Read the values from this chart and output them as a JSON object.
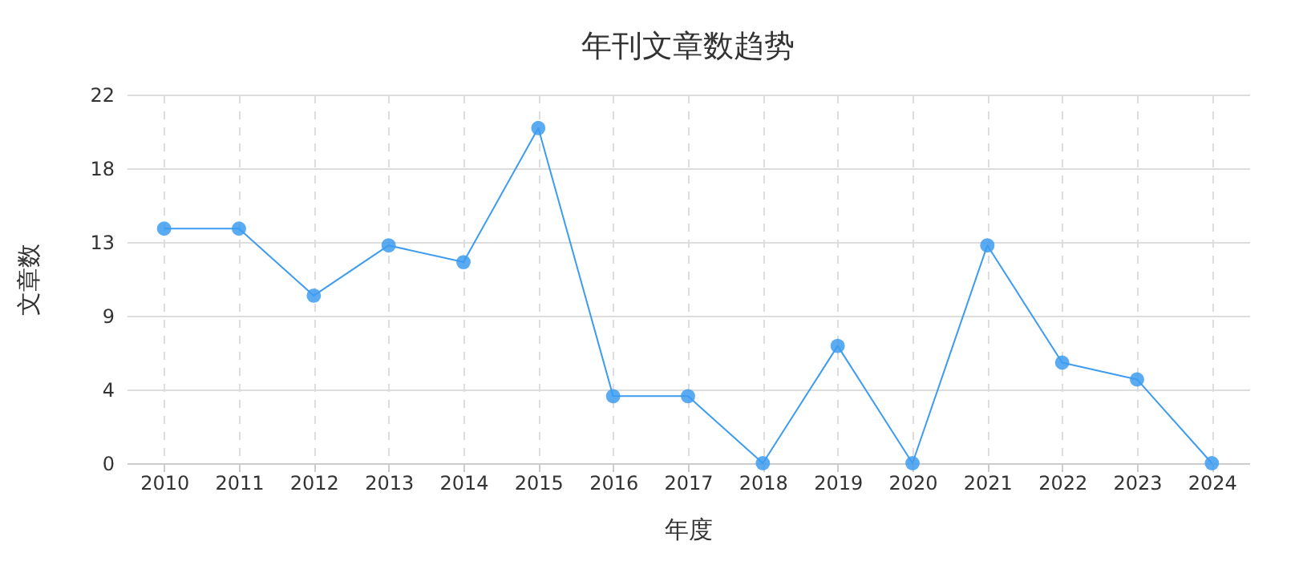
{
  "chart_data": {
    "type": "line",
    "title": "年刊文章数趋势",
    "xlabel": "年度",
    "ylabel": "文章数",
    "categories": [
      "2010",
      "2011",
      "2012",
      "2013",
      "2014",
      "2015",
      "2016",
      "2017",
      "2018",
      "2019",
      "2020",
      "2021",
      "2022",
      "2023",
      "2024"
    ],
    "series": [
      {
        "color": "#3d9cf0",
        "values": [
          14,
          14,
          10,
          13,
          12,
          20,
          4,
          4,
          0,
          7,
          0,
          13,
          6,
          5,
          0
        ]
      }
    ],
    "ylim": [
      0,
      22
    ],
    "yticks": [
      0,
      {
        "value": 4.4,
        "label": "4"
      },
      {
        "value": 8.8,
        "label": "9"
      },
      {
        "value": 13.2,
        "label": "13"
      },
      {
        "value": 17.6,
        "label": "18"
      },
      22
    ],
    "grid": true,
    "marker": "circle",
    "line_style": "solid"
  }
}
